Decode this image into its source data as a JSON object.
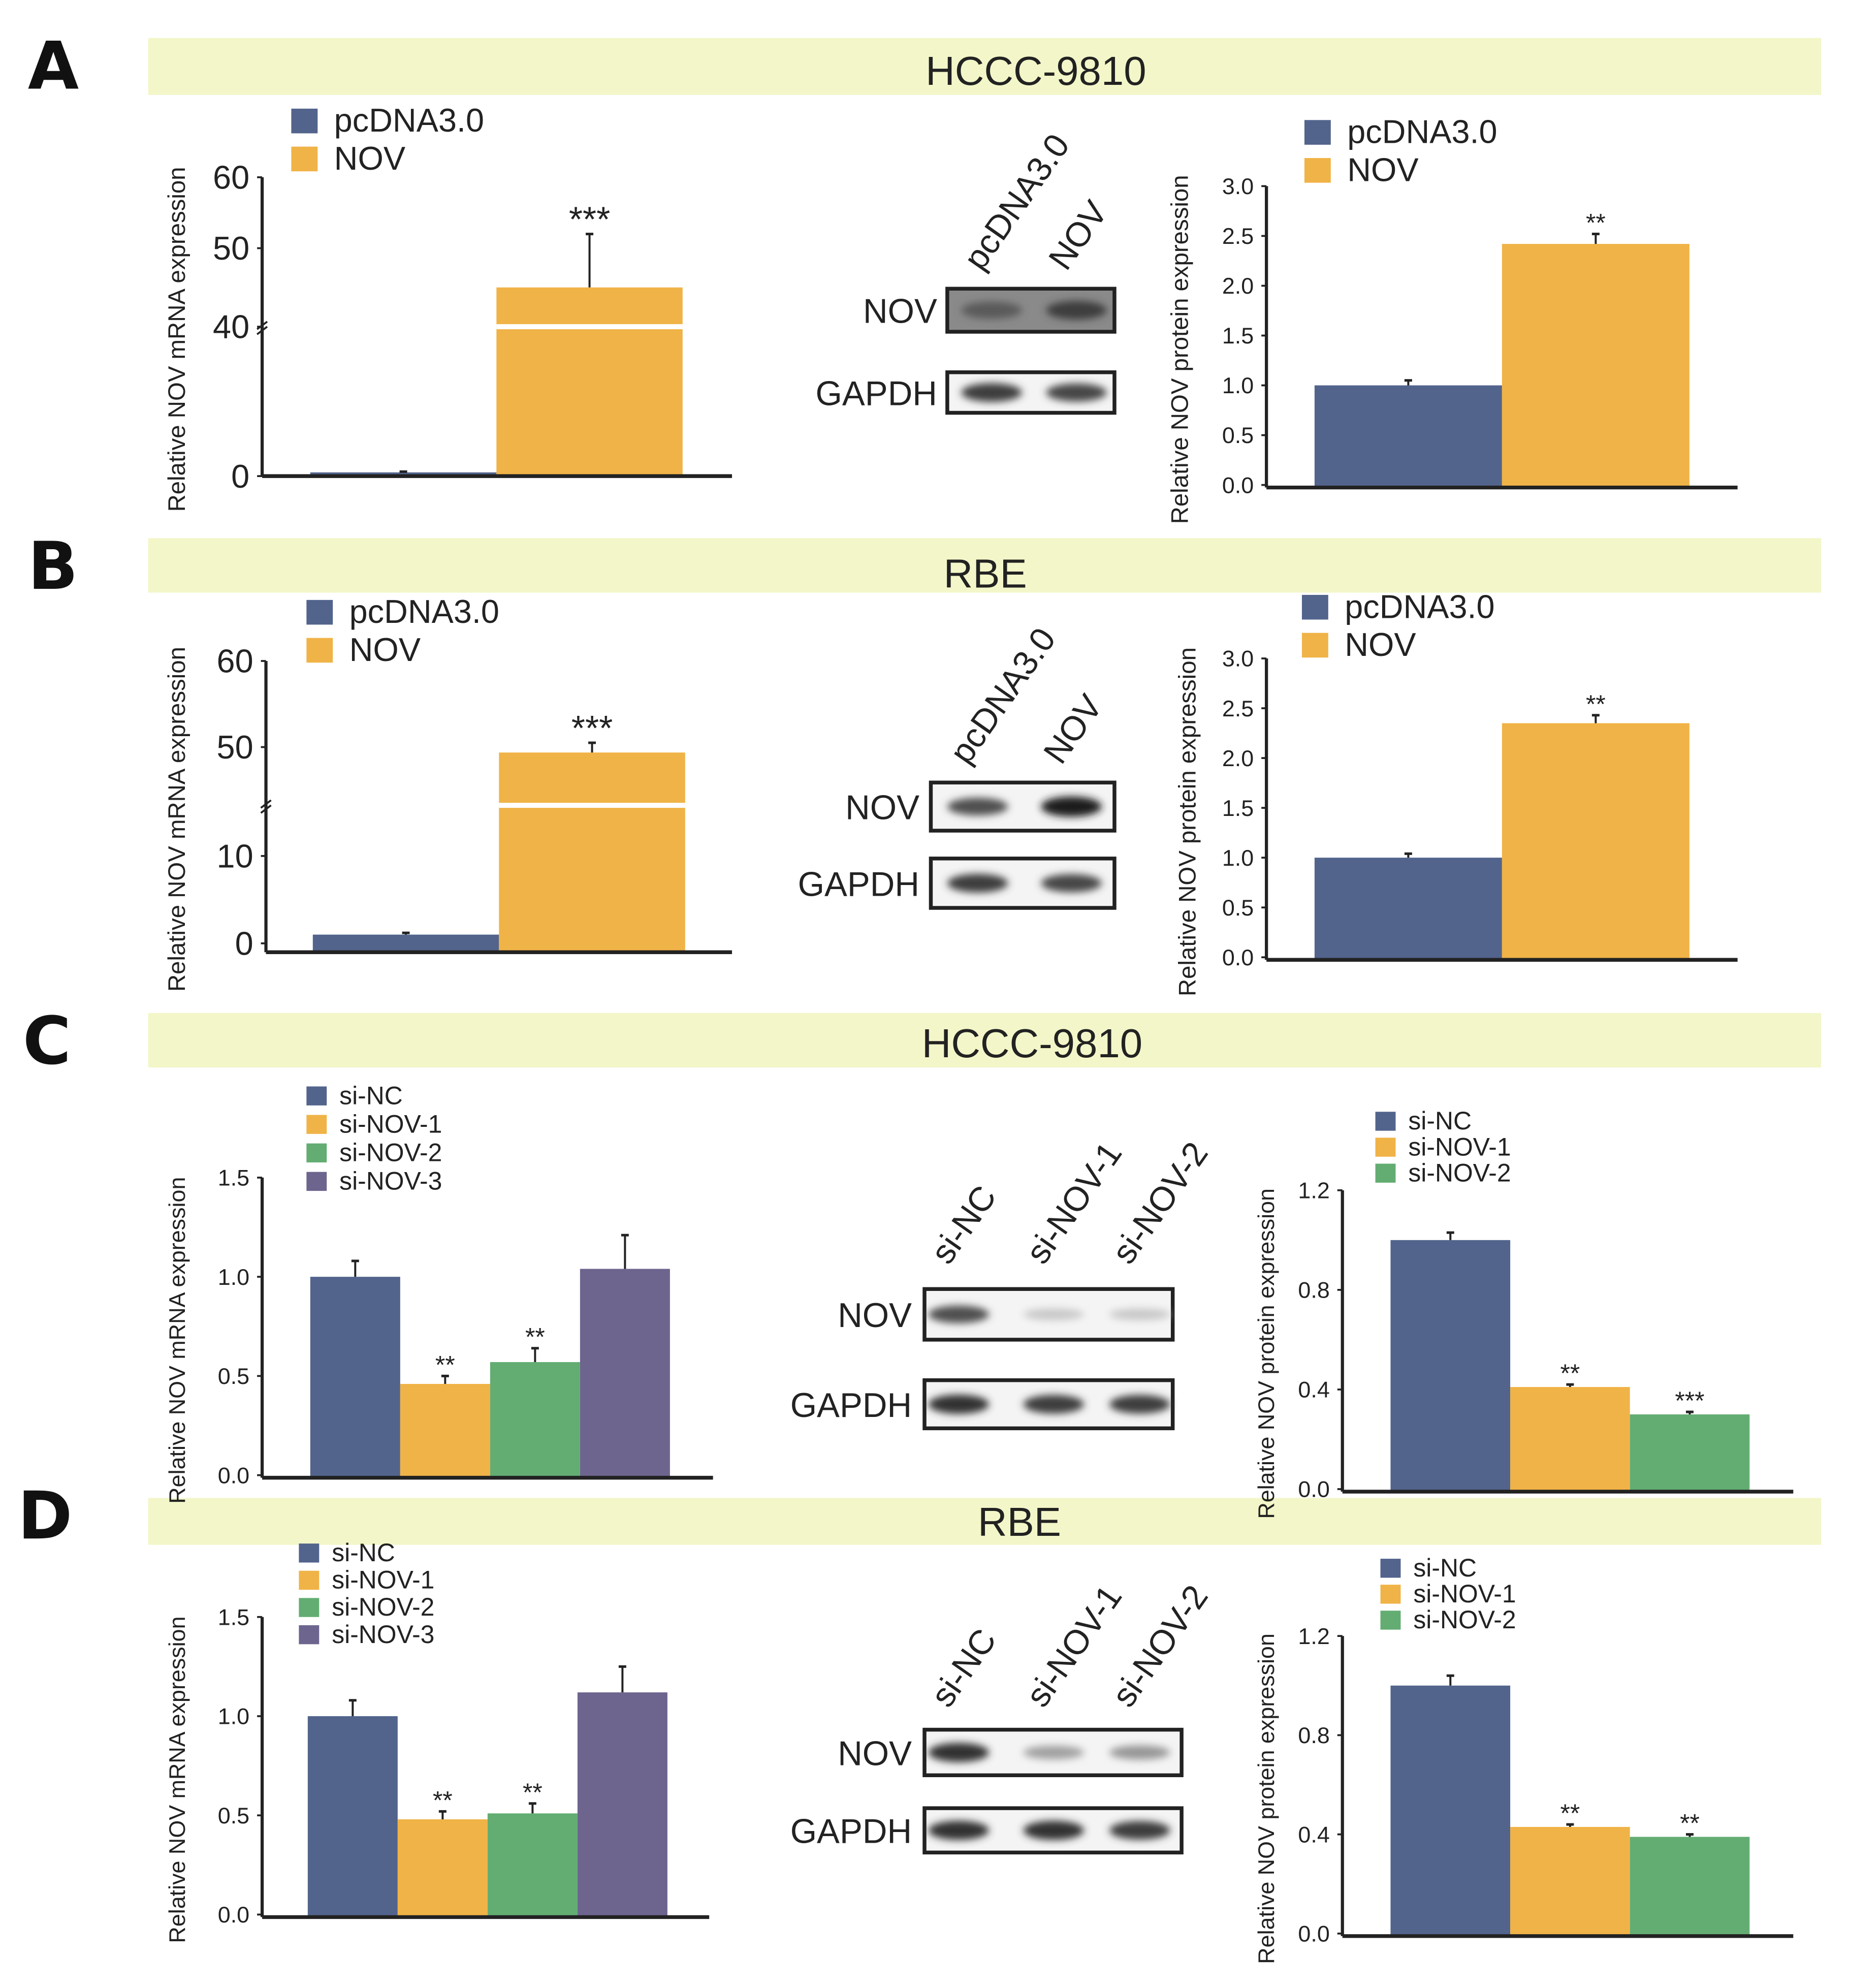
{
  "colors": {
    "blue": "#52648c",
    "orange": "#f0b347",
    "green": "#63ad72",
    "purple": "#6d658e",
    "banner": "#f3f6c8"
  },
  "panels": [
    {
      "letter": "A",
      "title": "HCCC-9810",
      "blot": {
        "lanes": [
          "pcDNA3.0",
          "NOV"
        ],
        "rows": [
          {
            "label": "NOV",
            "band_intensity": [
              0.7,
              0.85
            ]
          },
          {
            "label": "GAPDH",
            "band_intensity": [
              0.85,
              0.8
            ]
          }
        ]
      }
    },
    {
      "letter": "B",
      "title": "RBE",
      "blot": {
        "lanes": [
          "pcDNA3.0",
          "NOV"
        ],
        "rows": [
          {
            "label": "NOV",
            "band_intensity": [
              0.75,
              1.0
            ]
          },
          {
            "label": "GAPDH",
            "band_intensity": [
              0.85,
              0.8
            ]
          }
        ]
      }
    },
    {
      "letter": "C",
      "title": "HCCC-9810",
      "blot": {
        "lanes": [
          "si-NC",
          "si-NOV-1",
          "si-NOV-2"
        ],
        "rows": [
          {
            "label": "NOV",
            "band_intensity": [
              0.75,
              0.15,
              0.15
            ]
          },
          {
            "label": "GAPDH",
            "band_intensity": [
              0.9,
              0.85,
              0.85
            ]
          }
        ]
      }
    },
    {
      "letter": "D",
      "title": "RBE",
      "blot": {
        "lanes": [
          "si-NC",
          "si-NOV-1",
          "si-NOV-2"
        ],
        "rows": [
          {
            "label": "NOV",
            "band_intensity": [
              0.9,
              0.35,
              0.4
            ]
          },
          {
            "label": "GAPDH",
            "band_intensity": [
              0.9,
              0.9,
              0.85
            ]
          }
        ]
      }
    }
  ],
  "chart_data": [
    {
      "id": "A-mrna",
      "type": "bar",
      "panel": "A",
      "ylabel": "Relative NOV mRNA expression",
      "categories": [
        "pcDNA3.0",
        "NOV"
      ],
      "legend": [
        "pcDNA3.0",
        "NOV"
      ],
      "values": [
        1,
        45
      ],
      "errors": [
        1.2,
        52
      ],
      "significance": [
        "",
        "***"
      ],
      "yticks": [
        "0",
        "40",
        "50",
        "60"
      ],
      "ylim": [
        0,
        60
      ],
      "broken_axis": true,
      "colors": [
        "blue",
        "orange"
      ]
    },
    {
      "id": "A-protein",
      "type": "bar",
      "panel": "A",
      "ylabel": "Relative NOV protein expression",
      "categories": [
        "pcDNA3.0",
        "NOV"
      ],
      "legend": [
        "pcDNA3.0",
        "NOV"
      ],
      "values": [
        1.0,
        2.42
      ],
      "errors": [
        1.05,
        2.52
      ],
      "significance": [
        "",
        "**"
      ],
      "yticks": [
        "0.0",
        "0.5",
        "1.0",
        "1.5",
        "2.0",
        "2.5",
        "3.0"
      ],
      "ylim": [
        0,
        3
      ],
      "broken_axis": false,
      "colors": [
        "blue",
        "orange"
      ]
    },
    {
      "id": "B-mrna",
      "type": "bar",
      "panel": "B",
      "ylabel": "Relative NOV mRNA expression",
      "categories": [
        "pcDNA3.0",
        "NOV"
      ],
      "legend": [
        "pcDNA3.0",
        "NOV"
      ],
      "values": [
        1,
        48
      ],
      "errors": [
        1.2,
        50.5
      ],
      "significance": [
        "",
        "***"
      ],
      "yticks": [
        "0",
        "10",
        "50",
        "60"
      ],
      "ylim": [
        0,
        60
      ],
      "broken_axis": true,
      "colors": [
        "blue",
        "orange"
      ]
    },
    {
      "id": "B-protein",
      "type": "bar",
      "panel": "B",
      "ylabel": "Relative NOV protein expression",
      "categories": [
        "pcDNA3.0",
        "NOV"
      ],
      "legend": [
        "pcDNA3.0",
        "NOV"
      ],
      "values": [
        1.0,
        2.35
      ],
      "errors": [
        1.04,
        2.43
      ],
      "significance": [
        "",
        "**"
      ],
      "yticks": [
        "0.0",
        "0.5",
        "1.0",
        "1.5",
        "2.0",
        "2.5",
        "3.0"
      ],
      "ylim": [
        0,
        3
      ],
      "broken_axis": false,
      "colors": [
        "blue",
        "orange"
      ]
    },
    {
      "id": "C-mrna",
      "type": "bar",
      "panel": "C",
      "ylabel": "Relative NOV mRNA expression",
      "categories": [
        "si-NC",
        "si-NOV-1",
        "si-NOV-2",
        "si-NOV-3"
      ],
      "legend": [
        "si-NC",
        "si-NOV-1",
        "si-NOV-2",
        "si-NOV-3"
      ],
      "values": [
        1.0,
        0.46,
        0.57,
        1.04
      ],
      "errors": [
        1.08,
        0.5,
        0.64,
        1.21
      ],
      "significance": [
        "",
        "**",
        "**",
        ""
      ],
      "yticks": [
        "0.0",
        "0.5",
        "1.0",
        "1.5"
      ],
      "ylim": [
        0,
        1.5
      ],
      "broken_axis": false,
      "colors": [
        "blue",
        "orange",
        "green",
        "purple"
      ]
    },
    {
      "id": "C-protein",
      "type": "bar",
      "panel": "C",
      "ylabel": "Relative NOV protein expression",
      "categories": [
        "si-NC",
        "si-NOV-1",
        "si-NOV-2"
      ],
      "legend": [
        "si-NC",
        "si-NOV-1",
        "si-NOV-2"
      ],
      "values": [
        1.0,
        0.41,
        0.3
      ],
      "errors": [
        1.03,
        0.42,
        0.31
      ],
      "significance": [
        "",
        "**",
        "***"
      ],
      "yticks": [
        "0.0",
        "0.4",
        "0.8",
        "1.2"
      ],
      "ylim": [
        0,
        1.2
      ],
      "broken_axis": false,
      "colors": [
        "blue",
        "orange",
        "green"
      ]
    },
    {
      "id": "D-mrna",
      "type": "bar",
      "panel": "D",
      "ylabel": "Relative NOV mRNA expression",
      "categories": [
        "si-NC",
        "si-NOV-1",
        "si-NOV-2",
        "si-NOV-3"
      ],
      "legend": [
        "si-NC",
        "si-NOV-1",
        "si-NOV-2",
        "si-NOV-3"
      ],
      "values": [
        1.0,
        0.48,
        0.51,
        1.12
      ],
      "errors": [
        1.08,
        0.52,
        0.56,
        1.25
      ],
      "significance": [
        "",
        "**",
        "**",
        ""
      ],
      "yticks": [
        "0.0",
        "0.5",
        "1.0",
        "1.5"
      ],
      "ylim": [
        0,
        1.5
      ],
      "broken_axis": false,
      "colors": [
        "blue",
        "orange",
        "green",
        "purple"
      ]
    },
    {
      "id": "D-protein",
      "type": "bar",
      "panel": "D",
      "ylabel": "Relative NOV protein expression",
      "categories": [
        "si-NC",
        "si-NOV-1",
        "si-NOV-2"
      ],
      "legend": [
        "si-NC",
        "si-NOV-1",
        "si-NOV-2"
      ],
      "values": [
        1.0,
        0.43,
        0.39
      ],
      "errors": [
        1.04,
        0.44,
        0.4
      ],
      "significance": [
        "",
        "**",
        "**"
      ],
      "yticks": [
        "0.0",
        "0.4",
        "0.8",
        "1.2"
      ],
      "ylim": [
        0,
        1.2
      ],
      "broken_axis": false,
      "colors": [
        "blue",
        "orange",
        "green"
      ]
    }
  ]
}
